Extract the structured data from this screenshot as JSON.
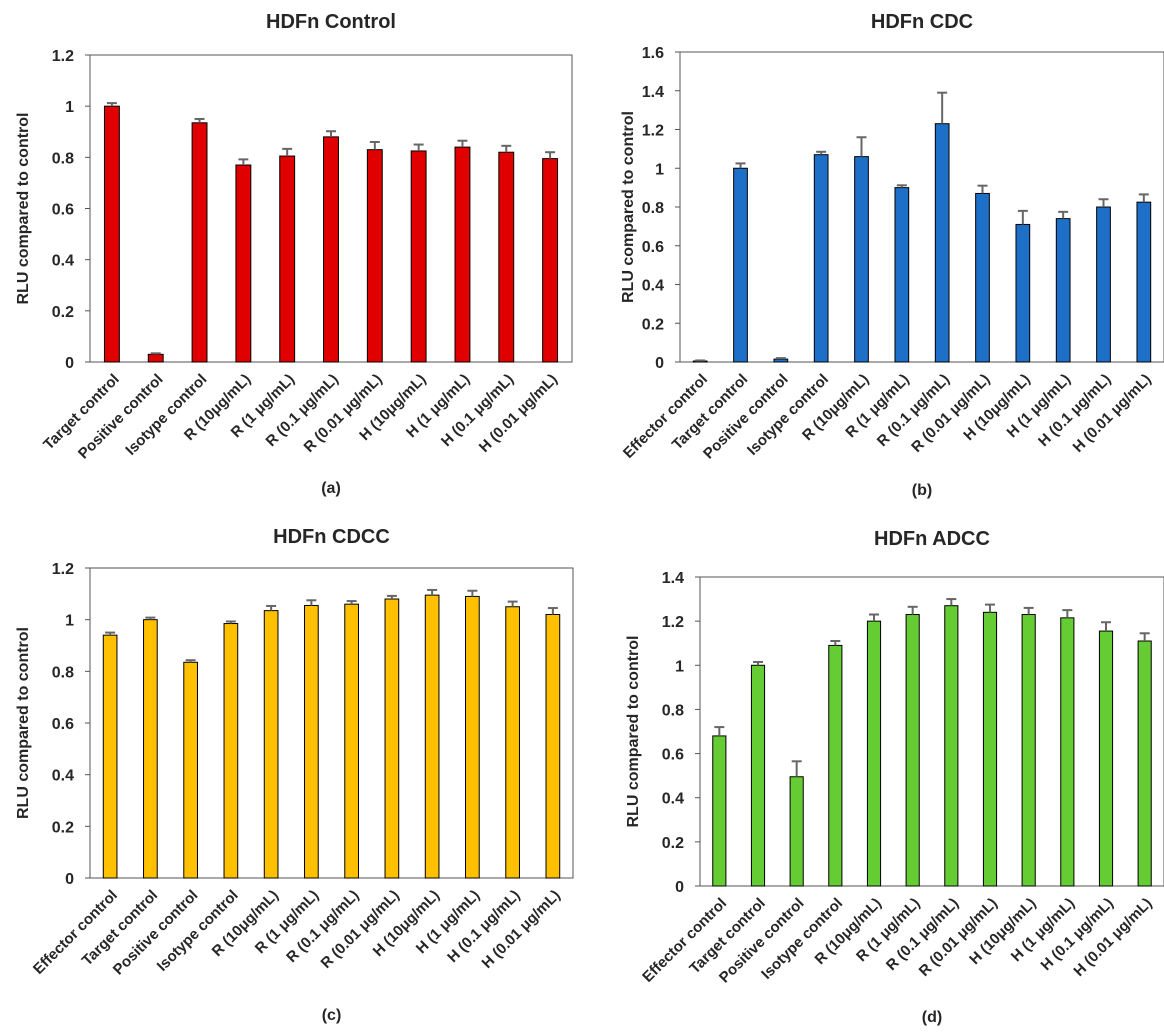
{
  "chart_data": [
    {
      "type": "bar",
      "title": "HDFn Control",
      "panel_label": "(a)",
      "xlabel": "",
      "ylabel": "RLU compared to control",
      "ylim": [
        0,
        1.2
      ],
      "yticks": [
        "0",
        "0.2",
        "0.4",
        "0.6",
        "0.8",
        "1",
        "1.2"
      ],
      "grid": false,
      "color": "#E00000",
      "categories": [
        "Target control",
        "Positive control",
        "Isotype control",
        "R (10μg/mL)",
        "R (1 μg/mL)",
        "R (0.1 μg/mL)",
        "R (0.01 μg/mL)",
        "H (10μg/mL)",
        "H (1 μg/mL)",
        "H (0.1 μg/mL)",
        "H (0.01 μg/mL)"
      ],
      "values": [
        1.0,
        0.03,
        0.935,
        0.77,
        0.805,
        0.88,
        0.83,
        0.825,
        0.84,
        0.82,
        0.795
      ],
      "errors": [
        0.012,
        0.004,
        0.015,
        0.022,
        0.028,
        0.022,
        0.03,
        0.025,
        0.025,
        0.025,
        0.025
      ]
    },
    {
      "type": "bar",
      "title": "HDFn CDC",
      "panel_label": "(b)",
      "xlabel": "",
      "ylabel": "RLU compared to control",
      "ylim": [
        0,
        1.6
      ],
      "yticks": [
        "0",
        "0.2",
        "0.4",
        "0.6",
        "0.8",
        "1",
        "1.2",
        "1.4",
        "1.6"
      ],
      "grid": false,
      "color": "#1E6FC8",
      "categories": [
        "Effector control",
        "Target control",
        "Positive control",
        "Isotype control",
        "R (10μg/mL)",
        "R (1 μg/mL)",
        "R (0.1 μg/mL)",
        "R (0.01 μg/mL)",
        "H (10μg/mL)",
        "H (1 μg/mL)",
        "H (0.1 μg/mL)",
        "H (0.01 μg/mL)"
      ],
      "values": [
        0.005,
        1.0,
        0.015,
        1.07,
        1.06,
        0.9,
        1.23,
        0.87,
        0.71,
        0.74,
        0.8,
        0.825
      ],
      "errors": [
        0.003,
        0.025,
        0.005,
        0.015,
        0.1,
        0.012,
        0.16,
        0.04,
        0.07,
        0.035,
        0.04,
        0.04
      ]
    },
    {
      "type": "bar",
      "title": "HDFn CDCC",
      "panel_label": "(c)",
      "xlabel": "",
      "ylabel": "RLU compared to control",
      "ylim": [
        0,
        1.2
      ],
      "yticks": [
        "0",
        "0.2",
        "0.4",
        "0.6",
        "0.8",
        "1",
        "1.2"
      ],
      "grid": false,
      "color": "#FFC000",
      "categories": [
        "Effector control",
        "Target control",
        "Positive control",
        "Isotype control",
        "R (10μg/mL)",
        "R (1 μg/mL)",
        "R (0.1 μg/mL)",
        "R (0.01 μg/mL)",
        "H (10μg/mL)",
        "H (1 μg/mL)",
        "H (0.1 μg/mL)",
        "H (0.01 μg/mL)"
      ],
      "values": [
        0.94,
        1.0,
        0.835,
        0.985,
        1.035,
        1.055,
        1.06,
        1.08,
        1.095,
        1.09,
        1.05,
        1.02
      ],
      "errors": [
        0.01,
        0.008,
        0.008,
        0.008,
        0.018,
        0.02,
        0.012,
        0.012,
        0.02,
        0.022,
        0.02,
        0.025
      ]
    },
    {
      "type": "bar",
      "title": "HDFn ADCC",
      "panel_label": "(d)",
      "xlabel": "",
      "ylabel": "RLU compared to control",
      "ylim": [
        0,
        1.4
      ],
      "yticks": [
        "0",
        "0.2",
        "0.4",
        "0.6",
        "0.8",
        "1",
        "1.2",
        "1.4"
      ],
      "grid": false,
      "color": "#66CC33",
      "categories": [
        "Effector control",
        "Target control",
        "Positive control",
        "Isotype control",
        "R (10μg/mL)",
        "R (1 μg/mL)",
        "R (0.1 μg/mL)",
        "R (0.01 μg/mL)",
        "H (10μg/mL)",
        "H (1 μg/mL)",
        "H (0.1 μg/mL)",
        "H (0.01 μg/mL)"
      ],
      "values": [
        0.68,
        1.0,
        0.495,
        1.09,
        1.2,
        1.23,
        1.27,
        1.24,
        1.23,
        1.215,
        1.155,
        1.11
      ],
      "errors": [
        0.04,
        0.015,
        0.07,
        0.02,
        0.03,
        0.035,
        0.03,
        0.035,
        0.03,
        0.035,
        0.04,
        0.035
      ]
    }
  ]
}
